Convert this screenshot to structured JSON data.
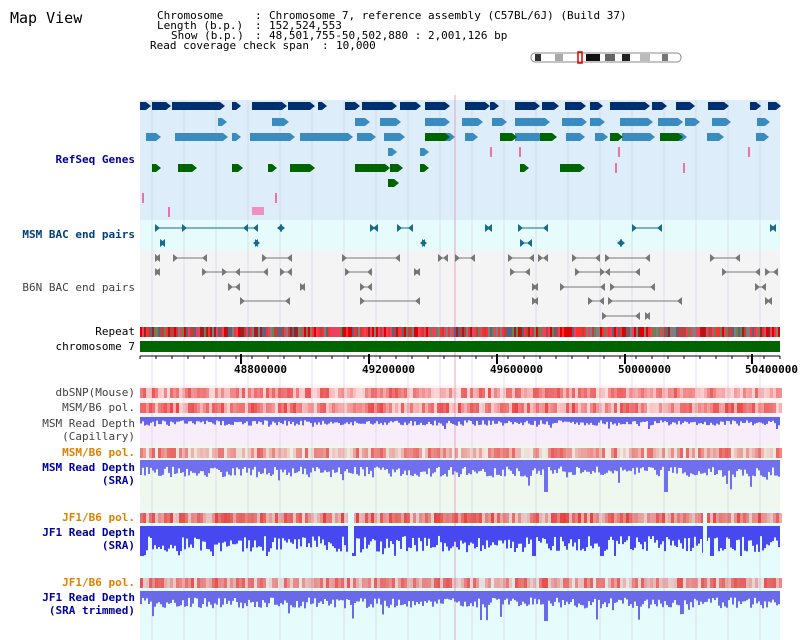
{
  "header": {
    "title": "Map View",
    "chromosome_label": "Chromosome",
    "chromosome_value": "Chromosome 7, reference assembly (C57BL/6J) (Build 37)",
    "length_label": "Length (b.p.)",
    "length_value": "152,524,553",
    "show_label": "Show (b.p.)",
    "show_value": "48,501,755-50,502,880 : 2,001,126 bp",
    "coverage_label": "Read coverage check span",
    "coverage_value": "10,000"
  },
  "tracks": {
    "refseq": "RefSeq Genes",
    "msm_bac": "MSM BAC end pairs",
    "b6n_bac": "B6N BAC end pairs",
    "repeat": "Repeat",
    "chromosome": "chromosome 7",
    "dbsnp": "dbSNP(Mouse)",
    "msm_b6_pol": "MSM/B6 pol.",
    "msm_depth_cap_1": "MSM Read Depth",
    "msm_depth_cap_2": "(Capillary)",
    "msm_b6_pol_2": "MSM/B6 pol.",
    "msm_depth_sra_1": "MSM Read Depth",
    "msm_depth_sra_2": "(SRA)",
    "jf1_b6_pol": "JF1/B6 pol.",
    "jf1_depth_sra_1": "JF1 Read Depth",
    "jf1_depth_sra_2": "(SRA)",
    "jf1_b6_pol_2": "JF1/B6 pol.",
    "jf1_depth_trim_1": "JF1 Read Depth",
    "jf1_depth_trim_2": "(SRA trimmed)"
  },
  "axis": {
    "ticks": [
      "48800000",
      "49200000",
      "49600000",
      "50000000",
      "50400000"
    ]
  },
  "colors": {
    "refseq_bg": "#ddeefa",
    "bac_bg": "#e6fbfb",
    "gene_dark": "#003070",
    "gene_mid": "#3a8cc0",
    "gene_green": "#006400",
    "chromosome_bar": "#006400",
    "depth_blue": "#5050e8",
    "label_blue": "#0000a0",
    "label_orange": "#e08000"
  }
}
